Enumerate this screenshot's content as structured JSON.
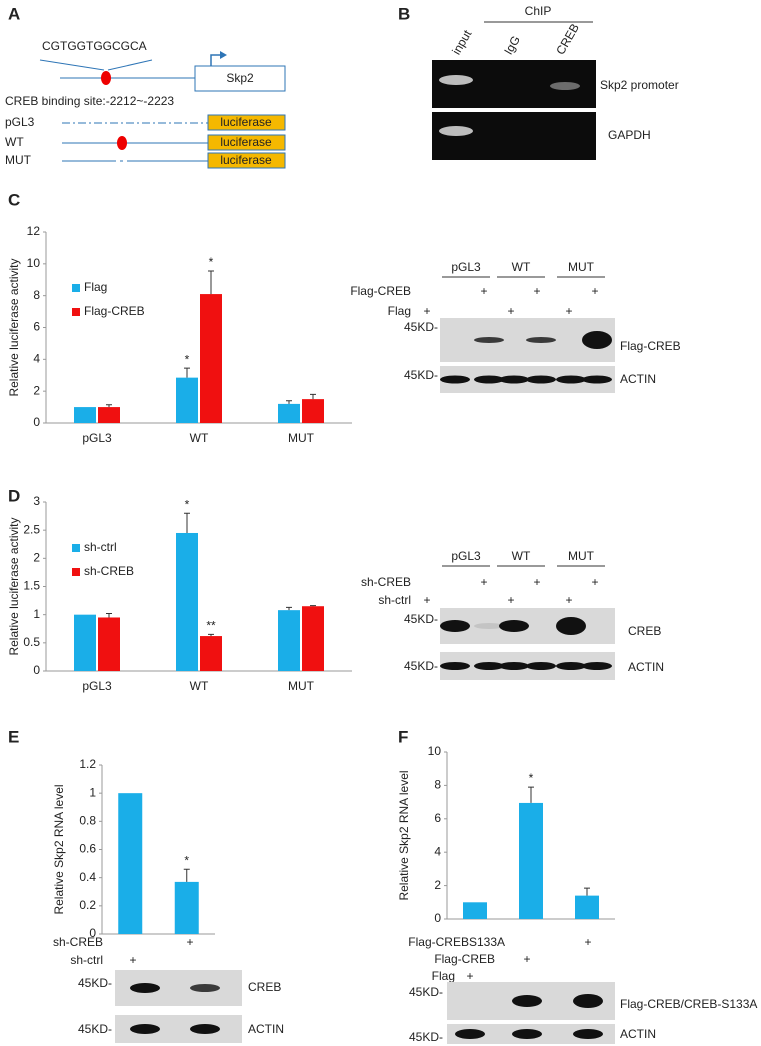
{
  "panel_labels": [
    "A",
    "B",
    "C",
    "D",
    "E",
    "F"
  ],
  "promoter_diagram": {
    "sequence": "CGTGGTGGCGCA",
    "gene": "Skp2",
    "binding_site": "CREB binding site:-2212~-2223",
    "constructs": [
      "pGL3",
      "WT",
      "MUT"
    ],
    "reporter": "luciferase"
  },
  "chip": {
    "title": "ChIP",
    "lanes": [
      "input",
      "IgG",
      "CREB"
    ],
    "targets": [
      "Skp2 promoter",
      "GAPDH"
    ]
  },
  "blots": [
    {
      "groups": [
        "pGL3",
        "WT",
        "MUT"
      ],
      "conditions": [
        {
          "name": "Flag-CREB",
          "marks": [
            null,
            "+",
            null,
            "+",
            null,
            "+"
          ]
        },
        {
          "name": "Flag",
          "marks": [
            "+",
            null,
            "+",
            null,
            "+",
            null
          ]
        }
      ],
      "markers": [
        "45KD-",
        "45KD-"
      ],
      "proteins": [
        "Flag-CREB",
        "ACTIN"
      ]
    },
    {
      "groups": [
        "pGL3",
        "WT",
        "MUT"
      ],
      "conditions": [
        {
          "name": "sh-CREB",
          "marks": [
            null,
            "+",
            null,
            "+",
            null,
            "+"
          ]
        },
        {
          "name": "sh-ctrl",
          "marks": [
            "+",
            null,
            "+",
            null,
            "+",
            null
          ]
        }
      ],
      "markers": [
        "45KD-",
        "45KD-"
      ],
      "proteins": [
        "CREB",
        "ACTIN"
      ]
    },
    {
      "conditions": [
        {
          "name": "sh-CREB",
          "marks": [
            null,
            "+"
          ]
        },
        {
          "name": "sh-ctrl",
          "marks": [
            "+",
            null
          ]
        }
      ],
      "markers": [
        "45KD-",
        "45KD-"
      ],
      "proteins": [
        "CREB",
        "ACTIN"
      ]
    },
    {
      "conditions": [
        {
          "name": "Flag-CREBS133A",
          "marks": [
            null,
            null,
            "+"
          ]
        },
        {
          "name": "Flag-CREB",
          "marks": [
            null,
            "+",
            null
          ]
        },
        {
          "name": "Flag",
          "marks": [
            "+",
            null,
            null
          ]
        }
      ],
      "markers": [
        "45KD-",
        "45KD-"
      ],
      "proteins": [
        "Flag-CREB/CREB-S133A",
        "ACTIN"
      ]
    }
  ],
  "chart_data": [
    {
      "type": "bar",
      "ylabel": "Relative luciferase activity",
      "categories": [
        "pGL3",
        "WT",
        "MUT"
      ],
      "series": [
        {
          "name": "Flag",
          "color": "#1aaee8",
          "values": [
            1,
            2.85,
            1.2
          ],
          "errors": [
            0,
            0.6,
            0.2
          ],
          "markers": [
            null,
            "*",
            null
          ]
        },
        {
          "name": "Flag-CREB",
          "color": "#f01010",
          "values": [
            1,
            8.1,
            1.5
          ],
          "errors": [
            0.15,
            1.45,
            0.3
          ],
          "markers": [
            null,
            "*",
            null
          ]
        }
      ],
      "ylim": [
        0,
        12
      ],
      "yticks": [
        0,
        2,
        4,
        6,
        8,
        10,
        12
      ],
      "legend": "left"
    },
    {
      "type": "bar",
      "ylabel": "Relative luciferase activity",
      "categories": [
        "pGL3",
        "WT",
        "MUT"
      ],
      "series": [
        {
          "name": "sh-ctrl",
          "color": "#1aaee8",
          "values": [
            1,
            2.45,
            1.08
          ],
          "errors": [
            0,
            0.35,
            0.05
          ],
          "markers": [
            null,
            "*",
            null
          ]
        },
        {
          "name": "sh-CREB",
          "color": "#f01010",
          "values": [
            0.95,
            0.62,
            1.15
          ],
          "errors": [
            0.07,
            0.03,
            0.01
          ],
          "markers": [
            null,
            "**",
            null
          ]
        }
      ],
      "ylim": [
        0,
        3
      ],
      "yticks": [
        0,
        0.5,
        1,
        1.5,
        2,
        2.5,
        3
      ],
      "legend": "left"
    },
    {
      "type": "bar",
      "ylabel": "Relative Skp2 RNA level",
      "categories": [
        null,
        null
      ],
      "series": [
        {
          "color": "#1aaee8",
          "values": [
            1,
            0.37
          ],
          "errors": [
            0,
            0.09
          ],
          "markers": [
            null,
            "*"
          ]
        }
      ],
      "ylim": [
        0,
        1.2
      ],
      "yticks": [
        0,
        0.2,
        0.4,
        0.6,
        0.8,
        1,
        1.2
      ]
    },
    {
      "type": "bar",
      "ylabel": "Relative Skp2 RNA level",
      "categories": [
        null,
        null,
        null
      ],
      "series": [
        {
          "color": "#1aaee8",
          "values": [
            1,
            6.95,
            1.4
          ],
          "errors": [
            0,
            0.95,
            0.45
          ],
          "markers": [
            null,
            "*",
            null
          ]
        }
      ],
      "ylim": [
        0,
        10
      ],
      "yticks": [
        0,
        2,
        4,
        6,
        8,
        10
      ]
    }
  ]
}
